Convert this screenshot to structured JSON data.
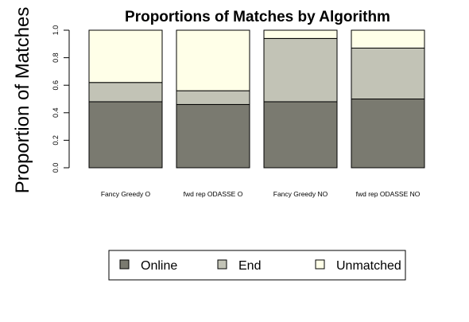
{
  "chart_data": {
    "type": "bar",
    "stacked": true,
    "title": "Proportions of Matches by Algorithm",
    "xlabel": "",
    "ylabel": "Proportion of Matches",
    "ylim": [
      0,
      1
    ],
    "yticks": [
      "0.0",
      "0.2",
      "0.4",
      "0.6",
      "0.8",
      "1.0"
    ],
    "categories": [
      "Fancy Greedy O",
      "fwd rep ODASSE O",
      "Fancy Greedy NO",
      "fwd rep ODASSE NO"
    ],
    "series": [
      {
        "name": "Online",
        "color": "#7a7a70",
        "values": [
          0.48,
          0.46,
          0.48,
          0.5
        ]
      },
      {
        "name": "End",
        "color": "#c2c3b6",
        "values": [
          0.14,
          0.1,
          0.46,
          0.37
        ]
      },
      {
        "name": "Unmatched",
        "color": "#ffffe8",
        "values": [
          0.38,
          0.44,
          0.06,
          0.13
        ]
      }
    ],
    "legend_position": "bottom"
  }
}
